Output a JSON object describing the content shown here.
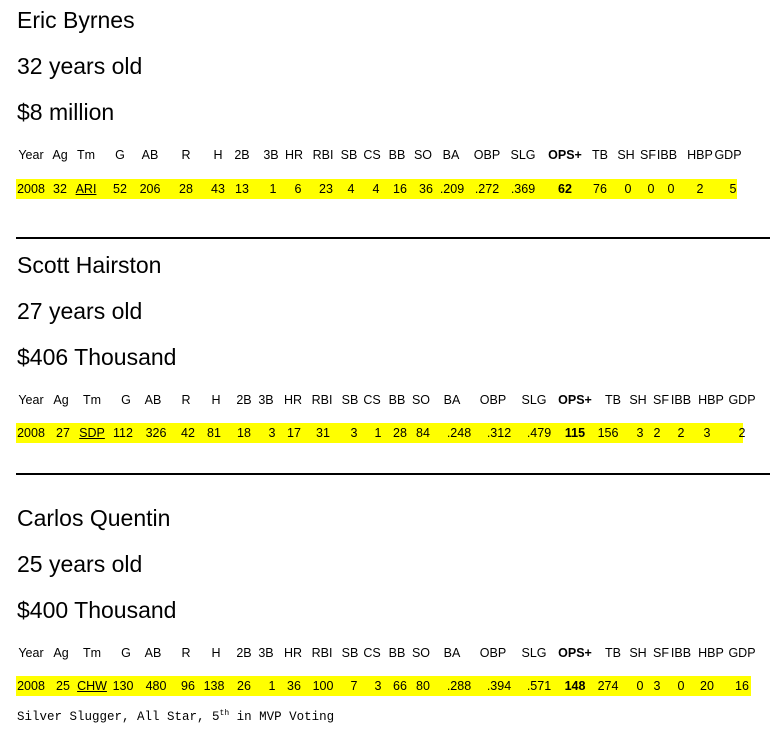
{
  "players": [
    {
      "name": "Eric Byrnes",
      "age_text": "32 years old",
      "salary": "$8 million",
      "headers": [
        "Year",
        "Ag",
        "Tm",
        "G",
        "AB",
        "R",
        "H",
        "2B",
        "3B",
        "HR",
        "RBI",
        "SB",
        "CS",
        "BB",
        "SO",
        "BA",
        "OBP",
        "SLG",
        "OPS+",
        "TB",
        "SH",
        "SF",
        "IBB",
        "HBP",
        "GDP"
      ],
      "values": [
        "2008",
        "32",
        "ARI",
        "52",
        "206",
        "28",
        "43",
        "13",
        "1",
        "6",
        "23",
        "4",
        "4",
        "16",
        "36",
        ".209",
        ".272",
        ".369",
        "62",
        "76",
        "0",
        "0",
        "0",
        "2",
        "5"
      ]
    },
    {
      "name": "Scott Hairston",
      "age_text": "27 years old",
      "salary": "$406 Thousand",
      "headers": [
        "Year",
        "Ag",
        "Tm",
        "G",
        "AB",
        "R",
        "H",
        "2B",
        "3B",
        "HR",
        "RBI",
        "SB",
        "CS",
        "BB",
        "SO",
        "BA",
        "OBP",
        "SLG",
        "OPS+",
        "TB",
        "SH",
        "SF",
        "IBB",
        "HBP",
        "GDP"
      ],
      "values": [
        "2008",
        "27",
        "SDP",
        "112",
        "326",
        "42",
        "81",
        "18",
        "3",
        "17",
        "31",
        "3",
        "1",
        "28",
        "84",
        ".248",
        ".312",
        ".479",
        "115",
        "156",
        "3",
        "2",
        "2",
        "3",
        "2"
      ]
    },
    {
      "name": "Carlos Quentin",
      "age_text": "25 years old",
      "salary": "$400 Thousand",
      "headers": [
        "Year",
        "Ag",
        "Tm",
        "G",
        "AB",
        "R",
        "H",
        "2B",
        "3B",
        "HR",
        "RBI",
        "SB",
        "CS",
        "BB",
        "SO",
        "BA",
        "OBP",
        "SLG",
        "OPS+",
        "TB",
        "SH",
        "SF",
        "IBB",
        "HBP",
        "GDP"
      ],
      "values": [
        "2008",
        "25",
        "CHW",
        "130",
        "480",
        "96",
        "138",
        "26",
        "1",
        "36",
        "100",
        "7",
        "3",
        "66",
        "80",
        ".288",
        ".394",
        ".571",
        "148",
        "274",
        "0",
        "3",
        "0",
        "20",
        "16"
      ]
    }
  ],
  "note": {
    "before": "Silver Slugger, All Star, 5",
    "sup": "th",
    "after": " in MVP Voting"
  },
  "colors": {
    "highlight": "#ffff00",
    "text": "#000000",
    "background": "#ffffff"
  }
}
